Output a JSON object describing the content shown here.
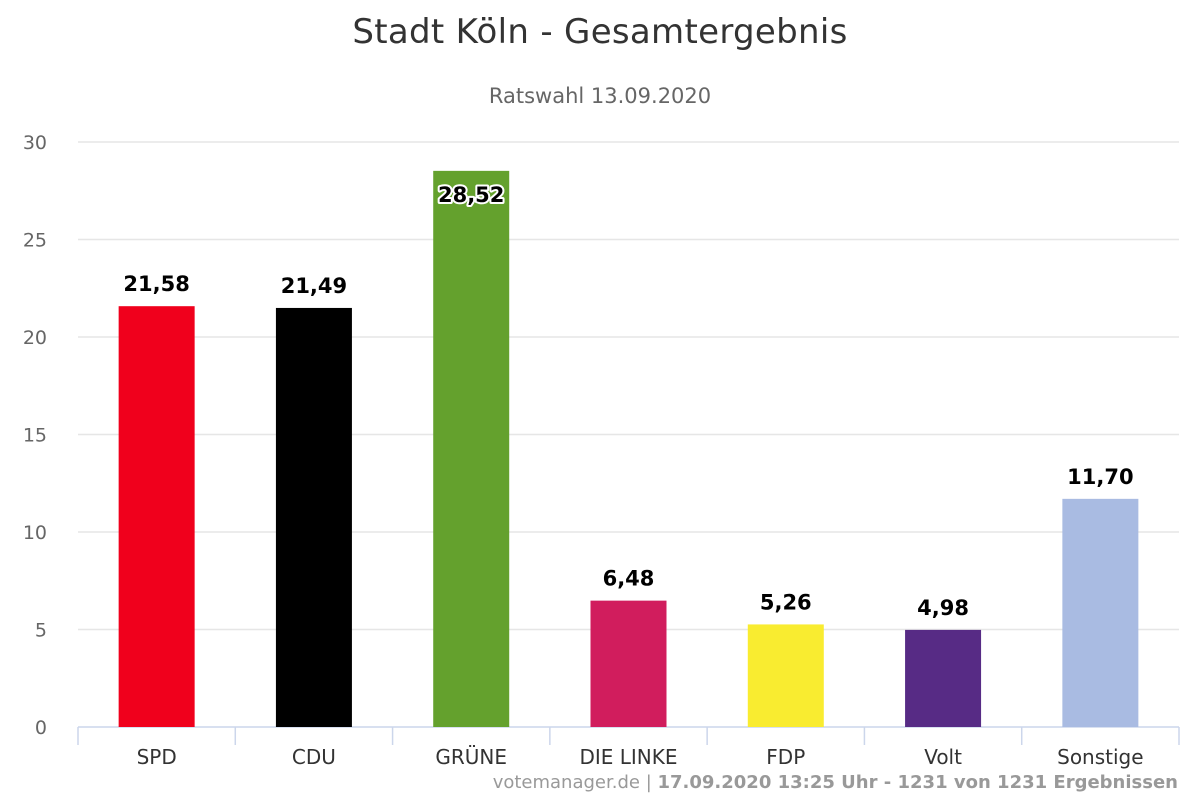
{
  "title": "Stadt Köln - Gesamtergebnis",
  "subtitle": "Ratswahl 13.09.2020",
  "footer": {
    "source": "votemanager.de",
    "separator": " | ",
    "timestamp": "17.09.2020 13:25 Uhr - 1231 von 1231 Ergebnissen"
  },
  "chart_data": {
    "type": "bar",
    "title": "Stadt Köln - Gesamtergebnis",
    "subtitle": "Ratswahl 13.09.2020",
    "xlabel": "",
    "ylabel": "",
    "ylim": [
      0,
      30
    ],
    "yticks": [
      "0",
      "5",
      "10",
      "15",
      "20",
      "25",
      "30"
    ],
    "grid": true,
    "legend": "none",
    "categories": [
      "SPD",
      "CDU",
      "GRÜNE",
      "DIE LINKE",
      "FDP",
      "Volt",
      "Sonstige"
    ],
    "values": [
      21.58,
      21.49,
      28.52,
      6.48,
      5.26,
      4.98,
      11.7
    ],
    "value_labels": [
      "21,58",
      "21,49",
      "28,52",
      "6,48",
      "5,26",
      "4,98",
      "11,70"
    ],
    "colors": [
      "#f0001c",
      "#000000",
      "#64a12d",
      "#d11d5d",
      "#f9ec30",
      "#572b85",
      "#a9bbe2"
    ]
  }
}
